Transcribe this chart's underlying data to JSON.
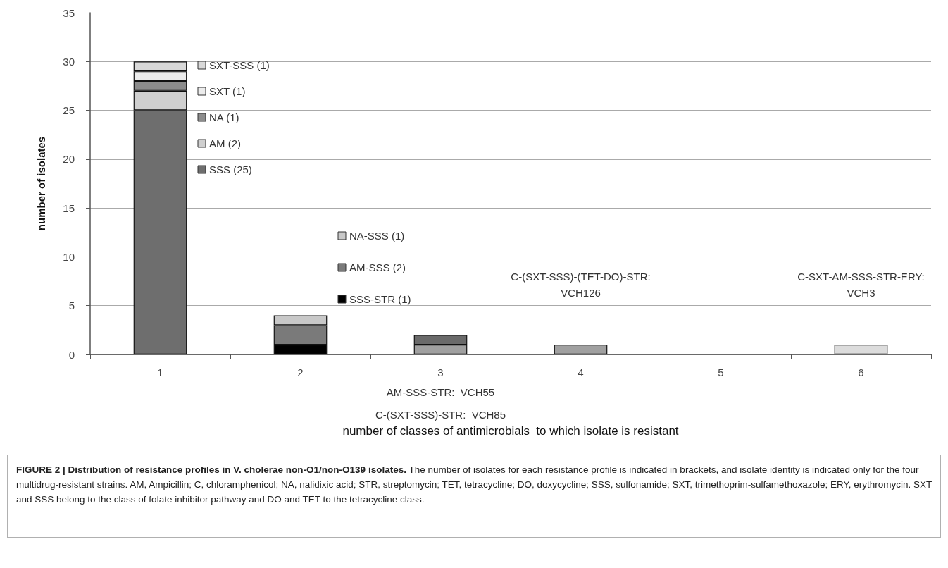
{
  "chart_data": {
    "type": "bar",
    "stacked": true,
    "title": "FIGURE 2 | Distribution of resistance profiles in V. cholerae non-O1/non-O139 isolates.",
    "subtitle": "The number of isolates for each resistance profile is indicated in brackets, and isolate identity is indicated only for the four multidrug-resistant strains. AM, Ampicillin; C, chloramphenicol; NA, nalidixic acid; STR, streptomycin; TET, tetracycline; DO, doxycycline; SSS, sulfonamide; SXT, trimethoprim-sulfamethoxazole; ERY, erythromycin. SXT and SSS belong to the class of folate inhibitor pathway and DO and TET to the tetracycline class.",
    "xlabel": "number of classes of antimicrobials  to which isolate is resistant",
    "ylabel": "number of isolates",
    "categories": [
      "1",
      "2",
      "3",
      "4",
      "5",
      "6"
    ],
    "series": [
      {
        "name": "SSS (25)",
        "color": "#6e6e6e",
        "values": [
          25,
          null,
          null,
          null,
          null,
          null
        ]
      },
      {
        "name": "AM (2)",
        "color": "#cfcfcf",
        "values": [
          2,
          null,
          null,
          null,
          null,
          null
        ]
      },
      {
        "name": "NA (1)",
        "color": "#8c8c8c",
        "values": [
          1,
          null,
          null,
          null,
          null,
          null
        ]
      },
      {
        "name": "SXT (1)",
        "color": "#ececec",
        "values": [
          1,
          null,
          null,
          null,
          null,
          null
        ]
      },
      {
        "name": "SXT-SSS (1)",
        "color": "#d8d8d8",
        "values": [
          1,
          null,
          null,
          null,
          null,
          null
        ]
      },
      {
        "name": "SSS-STR (1)",
        "color": "#000000",
        "values": [
          null,
          1,
          null,
          null,
          null,
          null
        ]
      },
      {
        "name": "AM-SSS (2)",
        "color": "#7a7a7a",
        "values": [
          null,
          2,
          null,
          null,
          null,
          null
        ]
      },
      {
        "name": "NA-SSS (1)",
        "color": "#c8c8c8",
        "values": [
          null,
          1,
          null,
          null,
          null,
          null
        ]
      },
      {
        "color": "#a0a0a0",
        "colors": [
          null,
          null,
          "#a0a0a0",
          "#a0a0a0",
          null,
          "#dcdcdc"
        ],
        "values": [
          null,
          null,
          1,
          1,
          null,
          1
        ]
      },
      {
        "color": "#6a6a6a",
        "values": [
          null,
          null,
          1,
          null,
          null,
          null
        ]
      }
    ],
    "annotations": [
      "AM-SSS-STR:  VCH55",
      "C-(SXT-SSS)-STR:  VCH85",
      "C-(SXT-SSS)-(TET-DO)-STR:\nVCH126",
      "C-SXT-AM-SSS-STR-ERY:\nVCH3"
    ],
    "ylim": [
      0,
      35
    ],
    "yticks": [
      0,
      5,
      10,
      15,
      20,
      25,
      30,
      35
    ],
    "grid": "y",
    "legend": "top left"
  }
}
